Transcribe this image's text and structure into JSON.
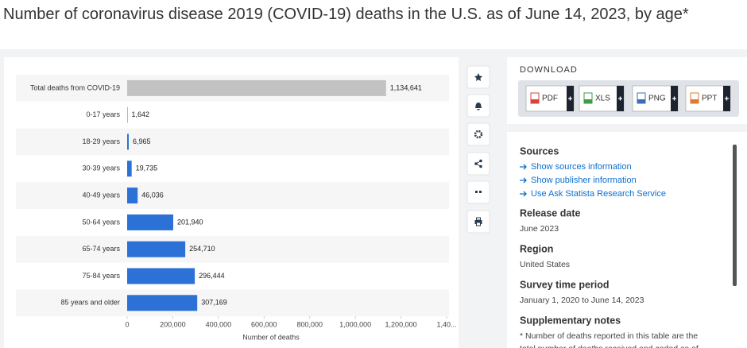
{
  "chart_data": {
    "type": "bar",
    "orientation": "horizontal",
    "title": "Number of coronavirus disease 2019 (COVID-19) deaths in the U.S. as of June 14, 2023, by age*",
    "categories": [
      "Total deaths from COVID-19",
      "0-17 years",
      "18-29 years",
      "30-39 years",
      "40-49 years",
      "50-64 years",
      "65-74 years",
      "75-84 years",
      "85 years and older"
    ],
    "values": [
      1134641,
      1642,
      6965,
      19735,
      46036,
      201940,
      254710,
      296444,
      307169
    ],
    "value_labels": [
      "1,134,641",
      "1,642",
      "6,965",
      "19,735",
      "46,036",
      "201,940",
      "254,710",
      "296,444",
      "307,169"
    ],
    "colors": [
      "#c2c2c2",
      "#2c72d6",
      "#2c72d6",
      "#2c72d6",
      "#2c72d6",
      "#2c72d6",
      "#2c72d6",
      "#2c72d6",
      "#2c72d6"
    ],
    "xlabel": "Number of deaths",
    "xlim": [
      0,
      1400000
    ],
    "xticks": [
      0,
      {
        "value": 200000,
        "label": "200,000"
      },
      {
        "value": 400000,
        "label": "400,000"
      },
      {
        "value": 600000,
        "label": "600,000"
      },
      {
        "value": 800000,
        "label": "800,000"
      },
      {
        "value": 1000000,
        "label": "1,000,000"
      },
      {
        "value": 1200000,
        "label": "1,200,000"
      },
      {
        "value": 1400000,
        "label": "1,40..."
      }
    ],
    "grid": false
  },
  "download": {
    "heading": "DOWNLOAD",
    "buttons": [
      "PDF",
      "XLS",
      "PNG",
      "PPT"
    ]
  },
  "details": [
    {
      "heading": "Sources",
      "links": [
        "Show sources information",
        "Show publisher information",
        "Use Ask Statista Research Service"
      ]
    },
    {
      "heading": "Release date",
      "text": [
        "June 2023"
      ]
    },
    {
      "heading": "Region",
      "text": [
        "United States"
      ]
    },
    {
      "heading": "Survey time period",
      "text": [
        "January 1, 2020 to June 14, 2023"
      ]
    },
    {
      "heading": "Supplementary notes",
      "text": [
        "* Number of deaths reported in this table are the",
        "total number of deaths received and coded as of"
      ]
    }
  ]
}
